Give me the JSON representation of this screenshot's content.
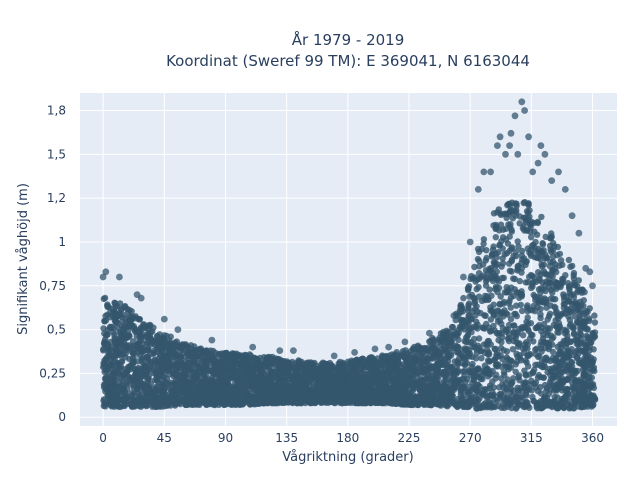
{
  "chart_data": {
    "type": "scatter",
    "title_line1": "År 1979 - 2019",
    "title_line2": "Koordinat (Sweref 99 TM): E 369041, N 6163044",
    "xlabel": "Vågriktning (grader)",
    "ylabel": "Signifikant våghöjd (m)",
    "xlim": [
      -17,
      378
    ],
    "ylim": [
      -0.05,
      1.85
    ],
    "x_ticks": [
      0,
      45,
      90,
      135,
      180,
      225,
      270,
      315,
      360
    ],
    "x_tick_labels": [
      "0",
      "45",
      "90",
      "135",
      "180",
      "225",
      "270",
      "315",
      "360"
    ],
    "y_ticks": [
      0,
      0.25,
      0.5,
      0.75,
      1,
      1.25,
      1.5,
      1.75
    ],
    "y_tick_labels": [
      "0",
      "0,25",
      "0,5",
      "0,75",
      "1",
      "1,2",
      "1,5",
      "1,8"
    ],
    "grid": true,
    "legend": "none",
    "marker_color": "#34566d",
    "background_color": "#e5ecf6",
    "grid_color": "#ffffff",
    "envelope": {
      "x": [
        0,
        10,
        20,
        30,
        45,
        60,
        75,
        90,
        105,
        120,
        135,
        150,
        165,
        180,
        195,
        210,
        225,
        240,
        255,
        265,
        275,
        285,
        295,
        305,
        315,
        325,
        335,
        345,
        355,
        362
      ],
      "y_max": [
        0.7,
        0.66,
        0.62,
        0.56,
        0.48,
        0.42,
        0.39,
        0.37,
        0.36,
        0.35,
        0.33,
        0.32,
        0.31,
        0.32,
        0.34,
        0.36,
        0.39,
        0.44,
        0.52,
        0.68,
        0.95,
        1.15,
        1.22,
        1.25,
        1.22,
        1.12,
        0.98,
        0.88,
        0.7,
        0.58
      ],
      "y_min": [
        0.06,
        0.06,
        0.06,
        0.06,
        0.06,
        0.07,
        0.07,
        0.07,
        0.07,
        0.08,
        0.08,
        0.08,
        0.08,
        0.08,
        0.08,
        0.08,
        0.07,
        0.07,
        0.06,
        0.06,
        0.05,
        0.05,
        0.05,
        0.05,
        0.05,
        0.05,
        0.05,
        0.05,
        0.06,
        0.06
      ]
    },
    "outliers": {
      "x": [
        0,
        2,
        12,
        25,
        28,
        45,
        55,
        80,
        110,
        130,
        140,
        170,
        185,
        200,
        210,
        222,
        240,
        258,
        265,
        270,
        276,
        280,
        285,
        290,
        292,
        296,
        299,
        300,
        303,
        305,
        308,
        310,
        313,
        316,
        320,
        322,
        325,
        330,
        335,
        340,
        345,
        350,
        355,
        358,
        360
      ],
      "y": [
        0.8,
        0.83,
        0.8,
        0.7,
        0.68,
        0.56,
        0.5,
        0.44,
        0.4,
        0.38,
        0.38,
        0.35,
        0.37,
        0.39,
        0.4,
        0.43,
        0.48,
        0.58,
        0.8,
        1.0,
        1.3,
        1.4,
        1.4,
        1.55,
        1.6,
        1.5,
        1.55,
        1.62,
        1.72,
        1.5,
        1.8,
        1.75,
        1.6,
        1.4,
        1.45,
        1.55,
        1.5,
        1.35,
        1.4,
        1.3,
        1.15,
        1.05,
        0.85,
        0.83,
        0.75
      ]
    }
  }
}
